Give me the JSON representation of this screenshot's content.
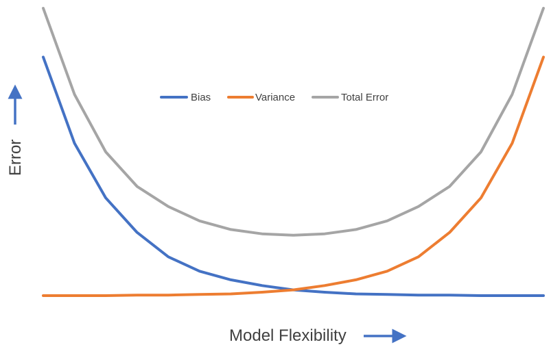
{
  "chart_data": {
    "type": "line",
    "title": "",
    "xlabel": "Model Flexibility",
    "ylabel": "Error",
    "grid": false,
    "legend": "top-center",
    "x": [
      1,
      2,
      3,
      4,
      5,
      6,
      7,
      8,
      9,
      10,
      11,
      12,
      13,
      14,
      15,
      16,
      17
    ],
    "xlim": [
      1,
      17
    ],
    "ylim": [
      0,
      100
    ],
    "series": [
      {
        "name": "Bias",
        "color": "#4472C4",
        "values": [
          83,
          53,
          34,
          22,
          13.5,
          8.5,
          5.5,
          3.5,
          2.0,
          1.2,
          0.6,
          0.4,
          0.2,
          0.2,
          0,
          0,
          0
        ]
      },
      {
        "name": "Variance",
        "color": "#ED7D31",
        "values": [
          0,
          0,
          0,
          0.2,
          0.2,
          0.4,
          0.6,
          1.2,
          2.0,
          3.5,
          5.5,
          8.5,
          13.5,
          22,
          34,
          53,
          83
        ]
      },
      {
        "name": "Total Error",
        "color": "#A5A5A5",
        "values": [
          100,
          70,
          50,
          38,
          31,
          26,
          23,
          21.5,
          21,
          21.5,
          23,
          26,
          31,
          38,
          50,
          70,
          100
        ]
      }
    ]
  }
}
